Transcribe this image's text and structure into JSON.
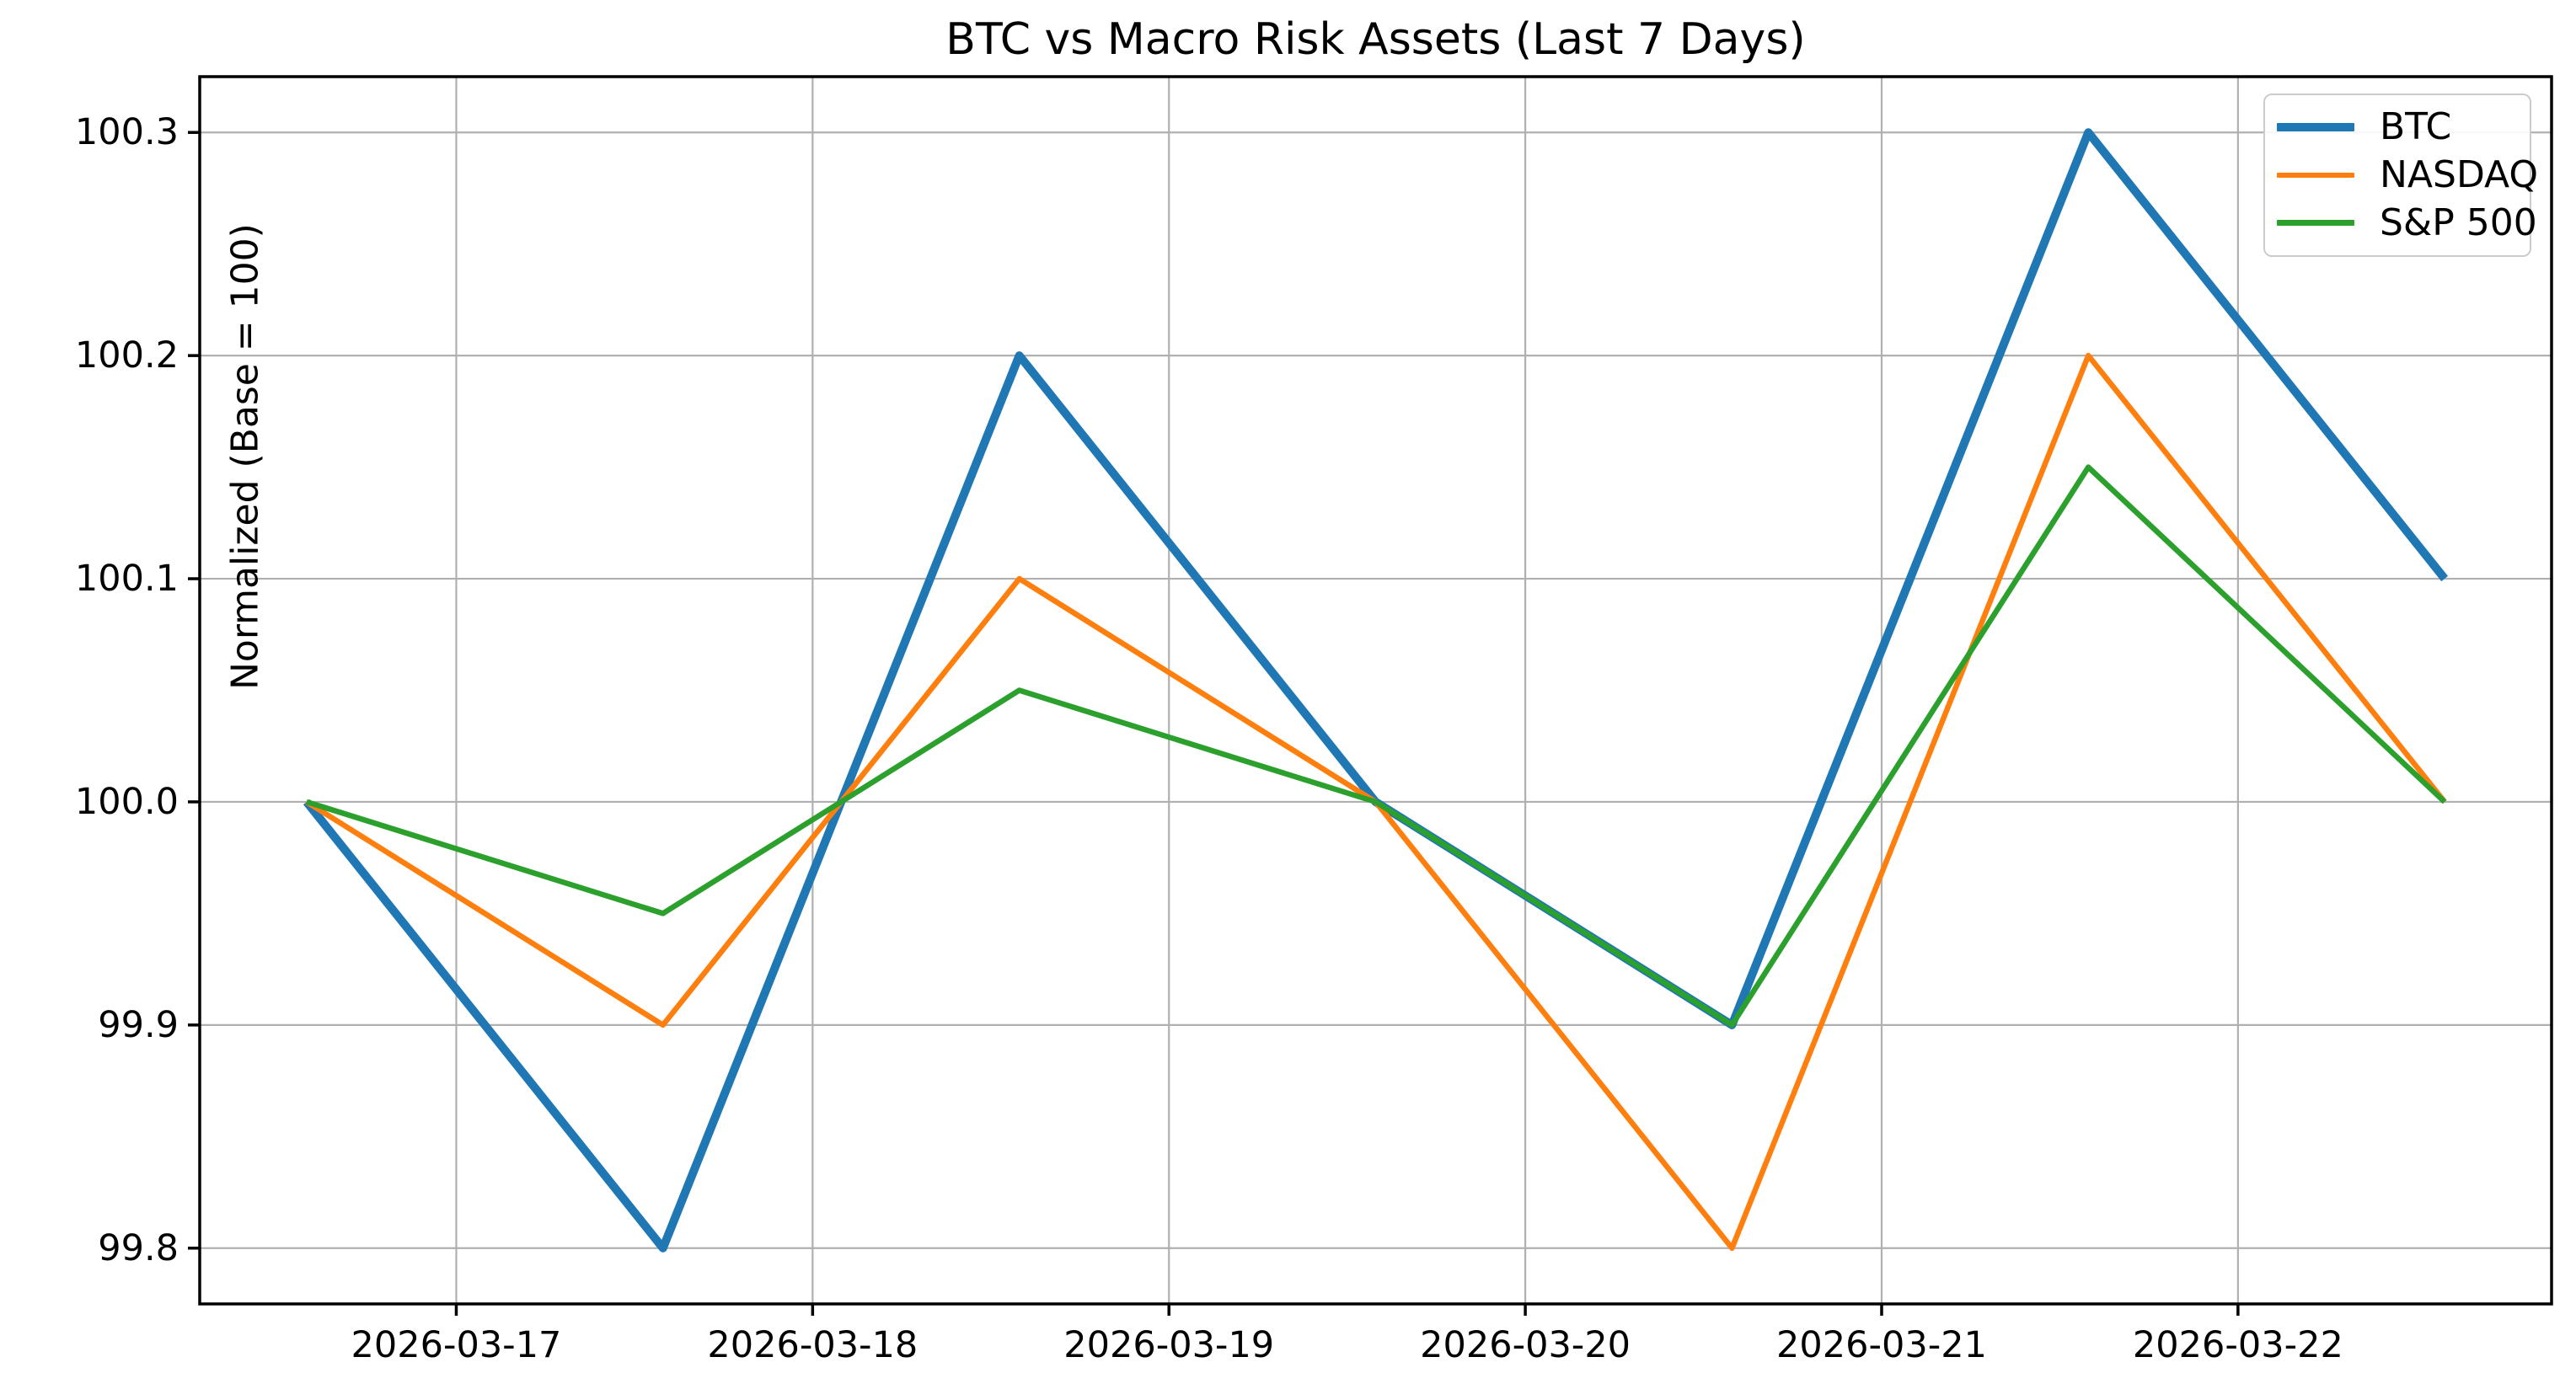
{
  "chart_data": {
    "type": "line",
    "title": "BTC vs Macro Risk Assets (Last 7 Days)",
    "xlabel": "",
    "ylabel": "Normalized (Base = 100)",
    "legend_position": "upper right",
    "grid": true,
    "grid_color": "#b0b0b0",
    "axes": {
      "xlim": [
        -0.3,
        6.3
      ],
      "ylim": [
        99.775,
        100.325
      ]
    },
    "x_ticks": {
      "positions": [
        0.42,
        1.42,
        2.42,
        3.42,
        4.42,
        5.42
      ],
      "labels": [
        "2026-03-17",
        "2026-03-18",
        "2026-03-19",
        "2026-03-20",
        "2026-03-21",
        "2026-03-22"
      ]
    },
    "y_ticks": {
      "values": [
        99.8,
        99.9,
        100.0,
        100.1,
        100.2,
        100.3
      ],
      "labels": [
        "99.8",
        "99.9",
        "100.0",
        "100.1",
        "100.2",
        "100.3"
      ]
    },
    "x": [
      0,
      1,
      2,
      3,
      4,
      5,
      6
    ],
    "series": [
      {
        "name": "BTC",
        "color": "#1f77b4",
        "linewidth": 10,
        "values": [
          100.0,
          99.8,
          100.2,
          100.0,
          99.9,
          100.3,
          100.1
        ]
      },
      {
        "name": "NASDAQ",
        "color": "#ff7f0e",
        "linewidth": 6.5,
        "values": [
          100.0,
          99.9,
          100.1,
          100.0,
          99.8,
          100.2,
          100.0
        ]
      },
      {
        "name": "S&P 500",
        "color": "#2ca02c",
        "linewidth": 6.5,
        "values": [
          100.0,
          99.95,
          100.05,
          100.0,
          99.9,
          100.15,
          100.0
        ]
      }
    ]
  }
}
